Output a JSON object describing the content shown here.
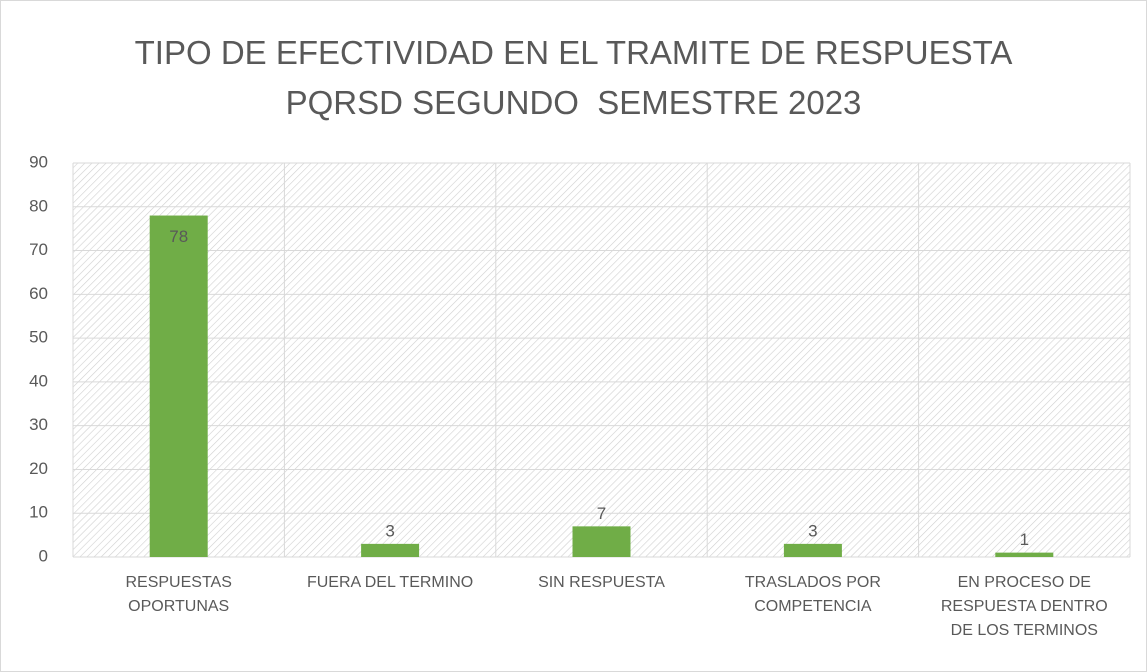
{
  "chart_data": {
    "type": "bar",
    "title": "TIPO DE EFECTIVIDAD EN EL TRAMITE DE RESPUESTA\nPQRSD SEGUNDO  SEMESTRE 2023",
    "categories": [
      "RESPUESTAS\nOPORTUNAS",
      "FUERA DEL TERMINO",
      "SIN RESPUESTA",
      "TRASLADOS POR\nCOMPETENCIA",
      "EN PROCESO DE\nRESPUESTA DENTRO\nDE LOS TERMINOS"
    ],
    "values": [
      78,
      3,
      7,
      3,
      1
    ],
    "color": "#70ad47",
    "ylim": [
      0,
      90
    ],
    "yticks": [
      0,
      10,
      20,
      30,
      40,
      50,
      60,
      70,
      80,
      90
    ],
    "grid": true
  }
}
